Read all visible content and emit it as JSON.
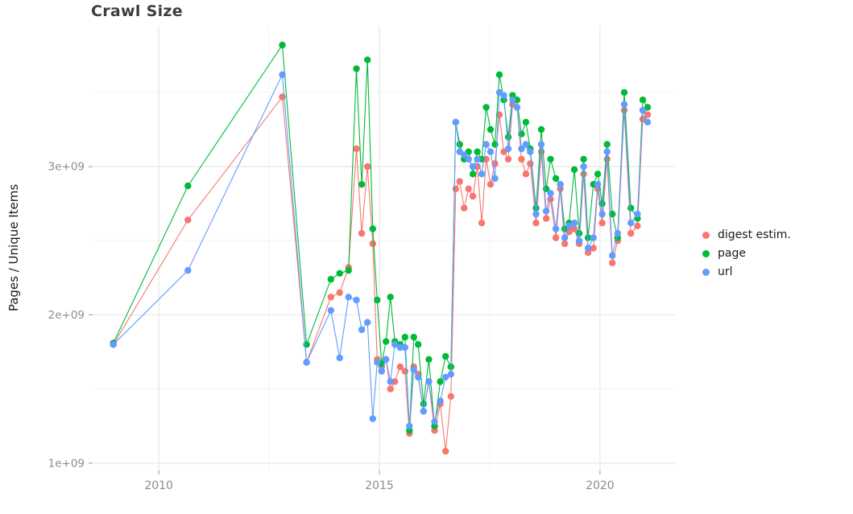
{
  "chart_data": {
    "type": "line",
    "title": "Crawl Size",
    "xlabel": "",
    "ylabel": "Pages / Unique Items",
    "values_unit": "billions (1e9 pages / unique items)",
    "xlim": [
      2008.5,
      2021.7
    ],
    "ylim": [
      0.95,
      3.95
    ],
    "grid": true,
    "legend_position": "right",
    "x_ticks": [
      {
        "value": 2010,
        "label": "2010"
      },
      {
        "value": 2015,
        "label": "2015"
      },
      {
        "value": 2020,
        "label": "2020"
      }
    ],
    "y_ticks": [
      {
        "value": 1,
        "label": "1e+09"
      },
      {
        "value": 2,
        "label": "2e+09"
      },
      {
        "value": 3,
        "label": "3e+09"
      }
    ],
    "x_minor": [
      2012.5,
      2017.5
    ],
    "y_minor": [
      1.5,
      2.5,
      3.5
    ],
    "x": [
      2008.97,
      2010.66,
      2012.8,
      2013.35,
      2013.9,
      2014.1,
      2014.3,
      2014.48,
      2014.6,
      2014.73,
      2014.85,
      2014.95,
      2015.05,
      2015.15,
      2015.25,
      2015.35,
      2015.47,
      2015.58,
      2015.68,
      2015.78,
      2015.88,
      2016.0,
      2016.12,
      2016.25,
      2016.38,
      2016.5,
      2016.62,
      2016.73,
      2016.82,
      2016.92,
      2017.02,
      2017.12,
      2017.22,
      2017.32,
      2017.42,
      2017.52,
      2017.62,
      2017.72,
      2017.82,
      2017.92,
      2018.02,
      2018.12,
      2018.22,
      2018.32,
      2018.42,
      2018.55,
      2018.67,
      2018.78,
      2018.88,
      2019.0,
      2019.1,
      2019.2,
      2019.3,
      2019.42,
      2019.53,
      2019.63,
      2019.73,
      2019.85,
      2019.95,
      2020.05,
      2020.16,
      2020.28,
      2020.4,
      2020.55,
      2020.7,
      2020.85,
      2020.97,
      2021.08
    ],
    "series": [
      {
        "name": "digest estim.",
        "color": "#F8766D",
        "values": [
          1.8,
          2.64,
          3.47,
          1.68,
          2.12,
          2.15,
          2.32,
          3.12,
          2.55,
          3.0,
          2.48,
          1.7,
          1.65,
          1.7,
          1.5,
          1.55,
          1.65,
          1.62,
          1.2,
          1.65,
          1.6,
          1.35,
          1.55,
          1.22,
          1.4,
          1.08,
          1.45,
          2.85,
          2.9,
          2.72,
          2.85,
          2.8,
          3.0,
          2.62,
          3.05,
          2.88,
          3.02,
          3.35,
          3.1,
          3.05,
          3.42,
          3.4,
          3.05,
          2.95,
          3.02,
          2.62,
          3.1,
          2.65,
          2.78,
          2.52,
          2.85,
          2.48,
          2.56,
          2.58,
          2.48,
          2.95,
          2.42,
          2.45,
          2.85,
          2.62,
          3.05,
          2.35,
          2.5,
          3.38,
          2.55,
          2.6,
          3.32,
          3.35
        ]
      },
      {
        "name": "page",
        "color": "#00BA38",
        "values": [
          1.81,
          2.87,
          3.82,
          1.8,
          2.24,
          2.28,
          2.3,
          3.66,
          2.88,
          3.72,
          2.58,
          2.1,
          1.67,
          1.82,
          2.12,
          1.82,
          1.8,
          1.85,
          1.22,
          1.85,
          1.8,
          1.4,
          1.7,
          1.25,
          1.55,
          1.72,
          1.65,
          3.3,
          3.15,
          3.05,
          3.1,
          2.95,
          3.1,
          3.05,
          3.4,
          3.25,
          3.15,
          3.62,
          3.45,
          3.2,
          3.48,
          3.45,
          3.22,
          3.3,
          3.12,
          2.72,
          3.25,
          2.85,
          3.05,
          2.92,
          2.88,
          2.58,
          2.62,
          2.98,
          2.55,
          3.05,
          2.52,
          2.88,
          2.95,
          2.75,
          3.15,
          2.68,
          2.52,
          3.5,
          2.72,
          2.65,
          3.45,
          3.4
        ]
      },
      {
        "name": "url",
        "color": "#619CFF",
        "values": [
          1.8,
          2.3,
          3.62,
          1.68,
          2.03,
          1.71,
          2.12,
          2.1,
          1.9,
          1.95,
          1.3,
          1.68,
          1.62,
          1.7,
          1.55,
          1.8,
          1.78,
          1.78,
          1.25,
          1.63,
          1.58,
          1.35,
          1.55,
          1.28,
          1.42,
          1.58,
          1.6,
          3.3,
          3.1,
          3.08,
          3.05,
          3.0,
          3.05,
          2.95,
          3.15,
          3.1,
          2.92,
          3.5,
          3.48,
          3.12,
          3.45,
          3.4,
          3.12,
          3.15,
          3.1,
          2.68,
          3.15,
          2.7,
          2.82,
          2.58,
          2.88,
          2.52,
          2.6,
          2.62,
          2.5,
          3.0,
          2.45,
          2.52,
          2.88,
          2.68,
          3.1,
          2.4,
          2.55,
          3.42,
          2.62,
          2.68,
          3.38,
          3.3
        ]
      }
    ]
  }
}
